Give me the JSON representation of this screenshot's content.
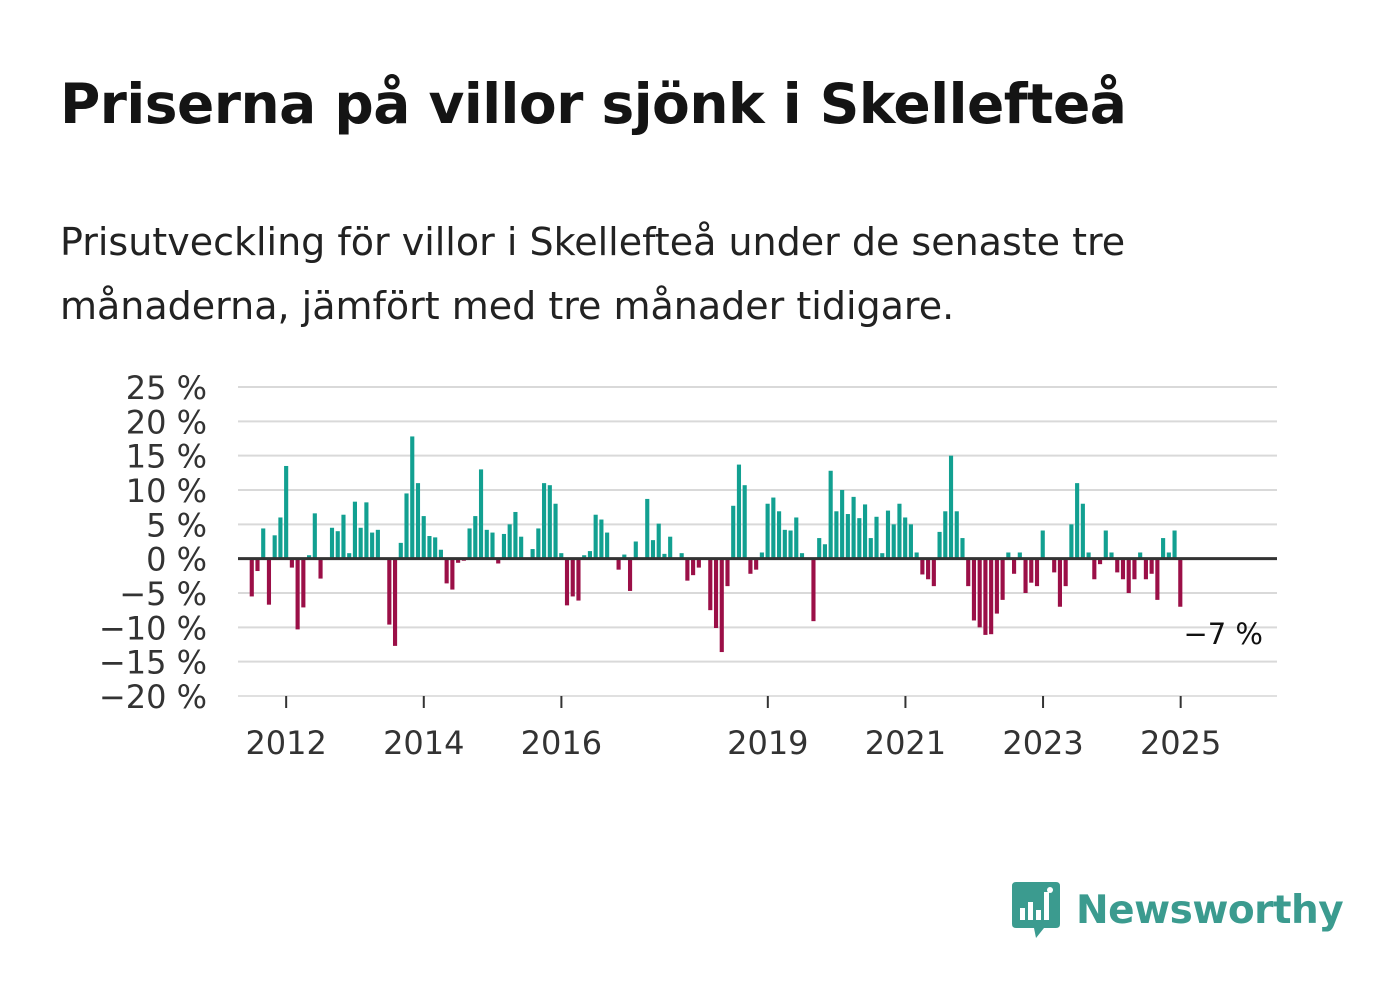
{
  "title": "Priserna på villor sjönk i Skellefteå",
  "subtitle": "Prisutveckling för villor i Skellefteå under de senaste tre månaderna, jämfört med tre månader tidigare.",
  "brand": {
    "name": "Newsworthy",
    "icon": "newsworthy-logo-icon"
  },
  "colors": {
    "positive": "#12a091",
    "negative": "#9b0f47",
    "grid": "#d9d9d9",
    "zero_line": "#333333"
  },
  "chart_data": {
    "type": "bar",
    "unit": "%",
    "x_start": 2011.5,
    "x_step": 0.0833,
    "values": [
      -5.5,
      -1.8,
      4.4,
      -6.7,
      3.4,
      6.0,
      13.5,
      -1.3,
      -10.3,
      -7.1,
      0.5,
      6.6,
      -2.9,
      0,
      4.5,
      4.0,
      6.4,
      0.8,
      8.3,
      4.5,
      8.2,
      3.8,
      4.2,
      0,
      -9.6,
      -12.7,
      2.3,
      9.5,
      17.8,
      11.0,
      6.2,
      3.3,
      3.1,
      1.3,
      -3.6,
      -4.5,
      -0.6,
      -0.3,
      4.4,
      6.2,
      13.0,
      4.2,
      3.8,
      -0.7,
      3.6,
      5.0,
      6.8,
      3.2,
      0,
      1.4,
      4.4,
      11.0,
      10.7,
      8.0,
      0.8,
      -6.8,
      -5.5,
      -6.1,
      0.5,
      1.1,
      6.4,
      5.7,
      3.8,
      0,
      -1.6,
      0.6,
      -4.7,
      2.5,
      0,
      8.7,
      2.7,
      5.1,
      0.7,
      3.2,
      0,
      0.8,
      -3.2,
      -2.4,
      -1.3,
      0,
      -7.5,
      -10.1,
      -13.6,
      -4.0,
      7.7,
      13.7,
      10.7,
      -2.2,
      -1.6,
      0.9,
      8.0,
      8.9,
      6.9,
      4.2,
      4.1,
      6.0,
      0.8,
      0,
      -9.1,
      3.0,
      2.1,
      12.8,
      6.9,
      10.0,
      6.5,
      9.0,
      5.9,
      7.9,
      3.0,
      6.1,
      0.8,
      7.0,
      5.0,
      8.0,
      6.0,
      5.0,
      0.9,
      -2.3,
      -3.0,
      -4.0,
      3.9,
      6.9,
      15.0,
      6.9,
      3.0,
      -4.0,
      -9.0,
      -10.0,
      -11.1,
      -11.0,
      -8.0,
      -6.0,
      0.9,
      -2.2,
      0.9,
      -5.0,
      -3.5,
      -4.0,
      4.1,
      0,
      -2.0,
      -7.0,
      -4.0,
      5.0,
      11.0,
      8.0,
      0.9,
      -3.0,
      -0.8,
      4.1,
      0.9,
      -2.0,
      -3.0,
      -5.0,
      -3.0,
      0.9,
      -3.0,
      -2.2,
      -6.0,
      3.0,
      0.9,
      4.1,
      -7.0
    ],
    "title": "Priserna på villor sjönk i Skellefteå",
    "xlabel": "",
    "ylabel": "",
    "ylim": [
      -20,
      25
    ],
    "y_ticks": [
      25,
      20,
      15,
      10,
      5,
      0,
      -5,
      -10,
      -15,
      -20
    ],
    "y_tick_labels": [
      "25 %",
      "20 %",
      "15 %",
      "10 %",
      "5 %",
      "0 %",
      "−5 %",
      "−10 %",
      "−15 %",
      "−20 %"
    ],
    "xlim": [
      2011.3,
      2026.4
    ],
    "x_ticks": [
      2012,
      2014,
      2016,
      2019,
      2021,
      2023,
      2025
    ],
    "x_tick_labels": [
      "2012",
      "2014",
      "2016",
      "2019",
      "2021",
      "2023",
      "2025"
    ],
    "annotation": {
      "text": "−7 %",
      "x": 2025.83,
      "y": -11
    },
    "grid": true
  }
}
